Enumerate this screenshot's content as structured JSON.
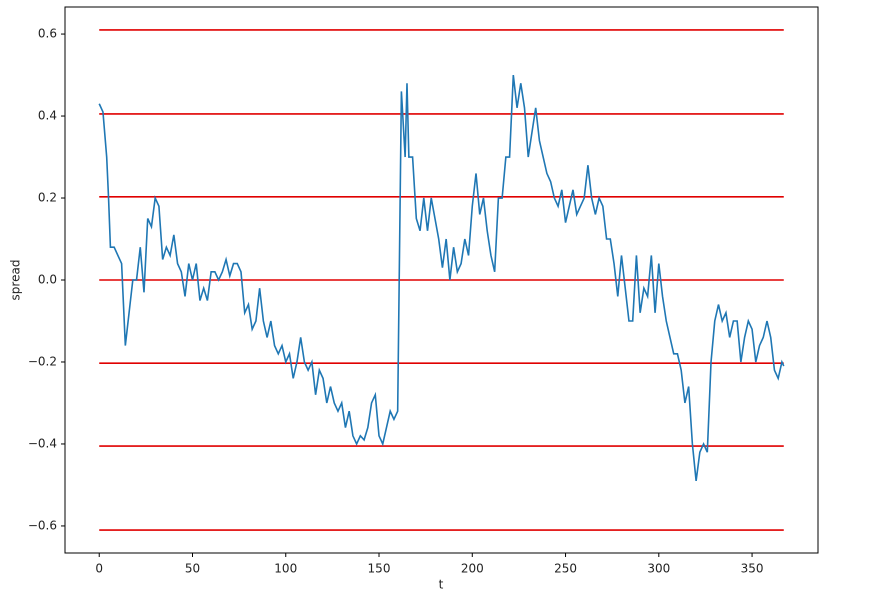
{
  "chart_data": {
    "type": "line",
    "xlabel": "t",
    "ylabel": "spread",
    "xlim": [
      -18.35,
      385.35
    ],
    "ylim": [
      -0.666,
      0.666
    ],
    "xticks": [
      0,
      50,
      100,
      150,
      200,
      250,
      300,
      350
    ],
    "yticks": [
      {
        "value": -0.6,
        "label": "−0.6"
      },
      {
        "value": -0.4,
        "label": "−0.4"
      },
      {
        "value": -0.2,
        "label": "−0.2"
      },
      {
        "value": 0,
        "label": "0.0"
      },
      0.2,
      0.4,
      0.6
    ],
    "hlines": {
      "color": "#e00000",
      "xmin": 0,
      "xmax": 367,
      "values": [
        0.61,
        0.405,
        0.203,
        0,
        -0.203,
        -0.405,
        -0.61
      ]
    },
    "x": [
      0,
      2,
      4,
      5,
      6,
      8,
      10,
      12,
      14,
      16,
      18,
      20,
      22,
      24,
      26,
      28,
      30,
      32,
      34,
      36,
      38,
      40,
      42,
      44,
      46,
      48,
      50,
      52,
      54,
      56,
      58,
      60,
      62,
      64,
      66,
      68,
      70,
      72,
      74,
      76,
      78,
      80,
      82,
      84,
      86,
      88,
      90,
      92,
      94,
      96,
      98,
      100,
      102,
      104,
      106,
      108,
      110,
      112,
      114,
      116,
      118,
      120,
      122,
      124,
      126,
      128,
      130,
      132,
      134,
      136,
      138,
      140,
      142,
      144,
      146,
      148,
      150,
      152,
      154,
      156,
      158,
      160,
      162,
      164,
      165,
      166,
      168,
      170,
      172,
      174,
      176,
      178,
      180,
      182,
      184,
      186,
      188,
      190,
      192,
      194,
      196,
      198,
      200,
      202,
      204,
      206,
      208,
      210,
      212,
      214,
      216,
      218,
      220,
      222,
      224,
      226,
      228,
      230,
      232,
      234,
      236,
      238,
      240,
      242,
      244,
      246,
      248,
      250,
      252,
      254,
      256,
      258,
      260,
      262,
      264,
      266,
      268,
      270,
      272,
      274,
      276,
      278,
      280,
      282,
      284,
      286,
      288,
      290,
      292,
      294,
      296,
      298,
      300,
      302,
      304,
      306,
      308,
      310,
      312,
      314,
      316,
      318,
      320,
      322,
      324,
      326,
      328,
      330,
      332,
      334,
      336,
      338,
      340,
      342,
      344,
      346,
      348,
      350,
      352,
      354,
      356,
      358,
      360,
      362,
      364,
      366,
      367
    ],
    "series": [
      {
        "color": "#1f77b4",
        "values": [
          0.43,
          0.41,
          0.3,
          0.2,
          0.08,
          0.08,
          0.06,
          0.04,
          -0.16,
          -0.08,
          0.0,
          0.0,
          0.08,
          -0.03,
          0.15,
          0.13,
          0.2,
          0.18,
          0.05,
          0.08,
          0.06,
          0.11,
          0.04,
          0.02,
          -0.04,
          0.04,
          0.0,
          0.04,
          -0.05,
          -0.02,
          -0.05,
          0.02,
          0.02,
          0.0,
          0.02,
          0.05,
          0.01,
          0.04,
          0.04,
          0.02,
          -0.08,
          -0.06,
          -0.12,
          -0.1,
          -0.02,
          -0.1,
          -0.14,
          -0.1,
          -0.16,
          -0.18,
          -0.16,
          -0.2,
          -0.18,
          -0.24,
          -0.2,
          -0.14,
          -0.2,
          -0.22,
          -0.2,
          -0.28,
          -0.22,
          -0.24,
          -0.3,
          -0.26,
          -0.3,
          -0.32,
          -0.3,
          -0.36,
          -0.32,
          -0.38,
          -0.4,
          -0.38,
          -0.39,
          -0.36,
          -0.3,
          -0.28,
          -0.38,
          -0.4,
          -0.36,
          -0.32,
          -0.34,
          -0.32,
          0.46,
          0.3,
          0.48,
          0.3,
          0.3,
          0.15,
          0.12,
          0.2,
          0.12,
          0.2,
          0.15,
          0.1,
          0.03,
          0.1,
          0.0,
          0.08,
          0.02,
          0.04,
          0.1,
          0.06,
          0.18,
          0.26,
          0.16,
          0.2,
          0.12,
          0.06,
          0.02,
          0.2,
          0.2,
          0.3,
          0.3,
          0.5,
          0.42,
          0.48,
          0.42,
          0.3,
          0.36,
          0.42,
          0.34,
          0.3,
          0.26,
          0.24,
          0.2,
          0.18,
          0.22,
          0.14,
          0.18,
          0.22,
          0.16,
          0.18,
          0.2,
          0.28,
          0.2,
          0.16,
          0.2,
          0.18,
          0.1,
          0.1,
          0.04,
          -0.04,
          0.06,
          -0.02,
          -0.1,
          -0.1,
          0.06,
          -0.08,
          -0.02,
          -0.04,
          0.06,
          -0.08,
          0.04,
          -0.04,
          -0.1,
          -0.14,
          -0.18,
          -0.18,
          -0.22,
          -0.3,
          -0.26,
          -0.4,
          -0.49,
          -0.42,
          -0.4,
          -0.42,
          -0.2,
          -0.1,
          -0.06,
          -0.1,
          -0.08,
          -0.14,
          -0.1,
          -0.1,
          -0.2,
          -0.14,
          -0.1,
          -0.12,
          -0.2,
          -0.16,
          -0.14,
          -0.1,
          -0.14,
          -0.22,
          -0.24,
          -0.2,
          -0.21
        ]
      }
    ]
  }
}
